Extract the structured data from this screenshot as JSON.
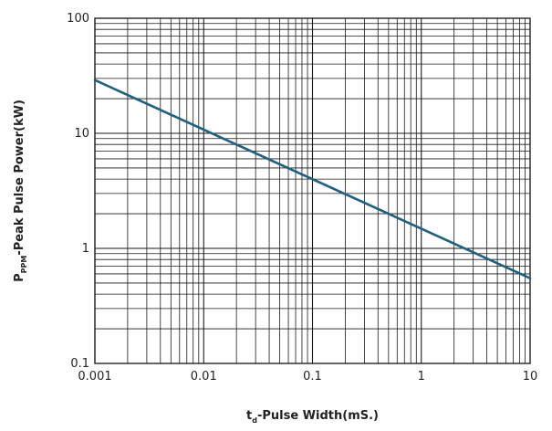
{
  "chart_data": {
    "type": "line",
    "xlabel": "t_d-Pulse Width(mS.)",
    "xlabel_main": "t",
    "xlabel_sub": "d",
    "xlabel_rest": "-Pulse Width(mS.)",
    "ylabel": "P_PPM-Peak Pulse Power(kW)",
    "ylabel_main": "P",
    "ylabel_sub": "PPM",
    "ylabel_rest": "-Peak Pulse Power(kW)",
    "x_scale": "log",
    "y_scale": "log",
    "xlim": [
      0.001,
      10
    ],
    "ylim": [
      0.1,
      100
    ],
    "x_ticks": [
      "0.001",
      "0.01",
      "0.1",
      "1",
      "10"
    ],
    "y_ticks": [
      "0.1",
      "1",
      "10",
      "100"
    ],
    "grid": true,
    "line_color": "#1f5f7f",
    "series": [
      {
        "x": [
          0.001,
          10
        ],
        "y": [
          29,
          0.55
        ]
      }
    ]
  }
}
